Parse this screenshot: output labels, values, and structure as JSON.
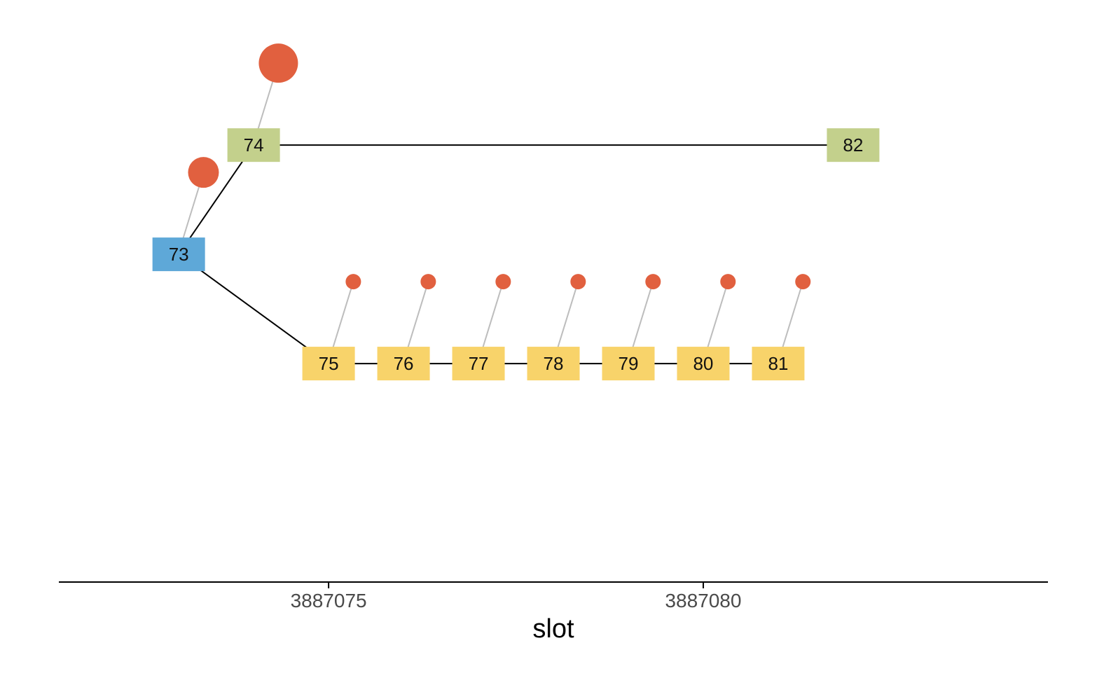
{
  "chart_data": {
    "type": "diagram",
    "xlabel": "slot",
    "x_ticks": [
      3887075,
      3887080
    ],
    "x_range": [
      3887071.4,
      3887084.6
    ],
    "y_range": [
      -3.0,
      2.2
    ],
    "colors": {
      "node_root": "#5ea8d8",
      "node_branch_a": "#c3d08c",
      "node_branch_b": "#f8d36a",
      "vote_marker": "#e1603f",
      "edge": "#000000",
      "vote_link": "#bdbdbd",
      "axis": "#000000"
    },
    "nodes": [
      {
        "id": "73",
        "label": "73",
        "slot": 3887073,
        "y": 0,
        "color": "#5ea8d8"
      },
      {
        "id": "74",
        "label": "74",
        "slot": 3887074,
        "y": 1,
        "color": "#c3d08c"
      },
      {
        "id": "82",
        "label": "82",
        "slot": 3887082,
        "y": 1,
        "color": "#c3d08c"
      },
      {
        "id": "75",
        "label": "75",
        "slot": 3887075,
        "y": -1,
        "color": "#f8d36a"
      },
      {
        "id": "76",
        "label": "76",
        "slot": 3887076,
        "y": -1,
        "color": "#f8d36a"
      },
      {
        "id": "77",
        "label": "77",
        "slot": 3887077,
        "y": -1,
        "color": "#f8d36a"
      },
      {
        "id": "78",
        "label": "78",
        "slot": 3887078,
        "y": -1,
        "color": "#f8d36a"
      },
      {
        "id": "79",
        "label": "79",
        "slot": 3887079,
        "y": -1,
        "color": "#f8d36a"
      },
      {
        "id": "80",
        "label": "80",
        "slot": 3887080,
        "y": -1,
        "color": "#f8d36a"
      },
      {
        "id": "81",
        "label": "81",
        "slot": 3887081,
        "y": -1,
        "color": "#f8d36a"
      }
    ],
    "edges": [
      [
        "73",
        "74"
      ],
      [
        "74",
        "82"
      ],
      [
        "73",
        "75"
      ],
      [
        "75",
        "76"
      ],
      [
        "76",
        "77"
      ],
      [
        "77",
        "78"
      ],
      [
        "78",
        "79"
      ],
      [
        "79",
        "80"
      ],
      [
        "80",
        "81"
      ]
    ],
    "vote_markers": [
      {
        "node": "74",
        "slot": 3887074.33,
        "y": 1.75,
        "weight": 3
      },
      {
        "node": "73",
        "slot": 3887073.33,
        "y": 0.75,
        "weight": 2
      },
      {
        "node": "75",
        "slot": 3887075.33,
        "y": -0.25,
        "weight": 1
      },
      {
        "node": "76",
        "slot": 3887076.33,
        "y": -0.25,
        "weight": 1
      },
      {
        "node": "77",
        "slot": 3887077.33,
        "y": -0.25,
        "weight": 1
      },
      {
        "node": "78",
        "slot": 3887078.33,
        "y": -0.25,
        "weight": 1
      },
      {
        "node": "79",
        "slot": 3887079.33,
        "y": -0.25,
        "weight": 1
      },
      {
        "node": "80",
        "slot": 3887080.33,
        "y": -0.25,
        "weight": 1
      },
      {
        "node": "81",
        "slot": 3887081.33,
        "y": -0.25,
        "weight": 1
      }
    ]
  }
}
